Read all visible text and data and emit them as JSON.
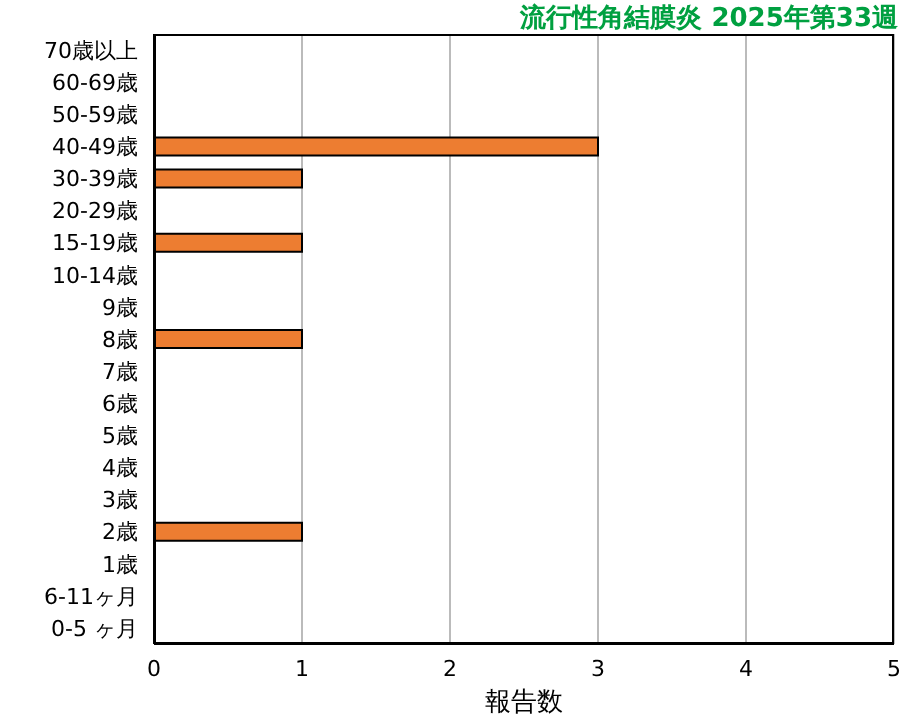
{
  "chart_data": {
    "type": "bar",
    "orientation": "horizontal",
    "title": "流行性角結膜炎 2025年第33週",
    "xlabel": "報告数",
    "categories": [
      "70歳以上",
      "60-69歳",
      "50-59歳",
      "40-49歳",
      "30-39歳",
      "20-29歳",
      "15-19歳",
      "10-14歳",
      "9歳",
      "8歳",
      "7歳",
      "6歳",
      "5歳",
      "4歳",
      "3歳",
      "2歳",
      "1歳",
      "6-11ヶ月",
      "0-5 ヶ月"
    ],
    "values": [
      0,
      0,
      0,
      3,
      1,
      0,
      1,
      0,
      0,
      1,
      0,
      0,
      0,
      0,
      0,
      1,
      0,
      0,
      0
    ],
    "color": "#ed7d31",
    "xlim": [
      0,
      5
    ],
    "xticks": [
      0,
      1,
      2,
      3,
      4,
      5
    ],
    "grid": "x"
  }
}
